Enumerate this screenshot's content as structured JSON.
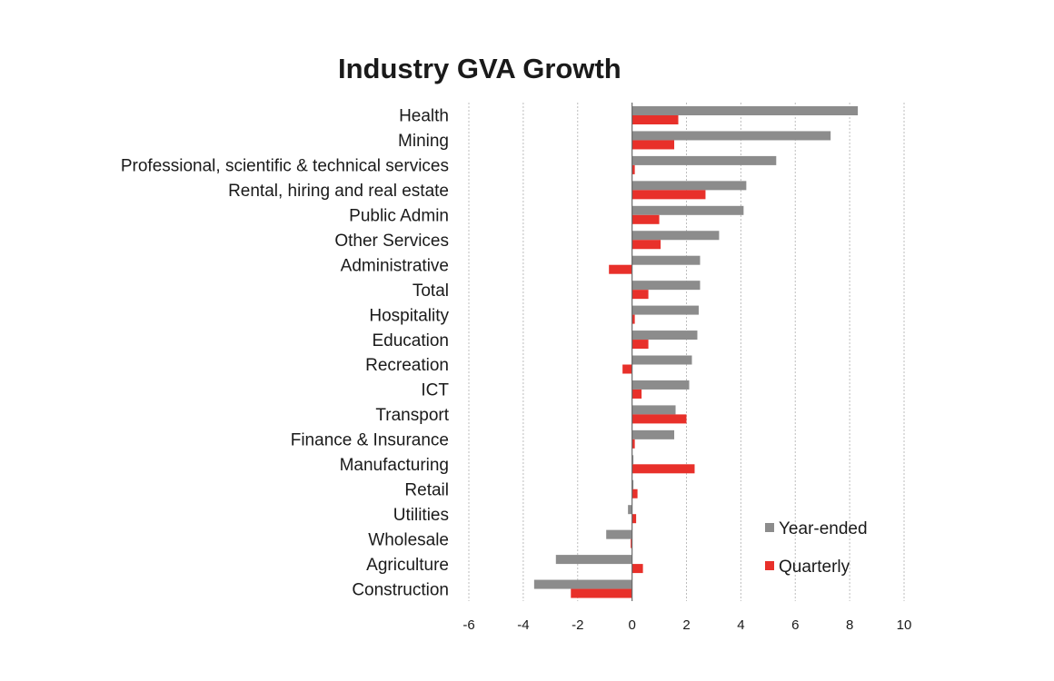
{
  "chart_data": {
    "type": "bar",
    "orientation": "horizontal",
    "title": "Industry GVA Growth",
    "xlabel": "",
    "ylabel": "",
    "xlim": [
      -6,
      10
    ],
    "xticks": [
      -6,
      -4,
      -2,
      0,
      2,
      4,
      6,
      8,
      10
    ],
    "grid": "vertical dashed",
    "legend_position": "bottom-right",
    "categories": [
      "Health",
      "Mining",
      "Professional, scientific & technical services",
      "Rental, hiring and real estate",
      "Public Admin",
      "Other Services",
      "Administrative",
      "Total",
      "Hospitality",
      "Education",
      "Recreation",
      "ICT",
      "Transport",
      "Finance & Insurance",
      "Manufacturing",
      "Retail",
      "Utilities",
      "Wholesale",
      "Agriculture",
      "Construction"
    ],
    "series": [
      {
        "name": "Year-ended",
        "color": "#8c8c8c",
        "values": [
          8.3,
          7.3,
          5.3,
          4.2,
          4.1,
          3.2,
          2.5,
          2.5,
          2.45,
          2.4,
          2.2,
          2.1,
          1.6,
          1.55,
          0.05,
          0.05,
          -0.15,
          -0.95,
          -2.8,
          -3.6
        ]
      },
      {
        "name": "Quarterly",
        "color": "#e8302a",
        "values": [
          1.7,
          1.55,
          0.1,
          2.7,
          1.0,
          1.05,
          -0.85,
          0.6,
          0.1,
          0.6,
          -0.35,
          0.35,
          2.0,
          0.1,
          2.3,
          0.2,
          0.15,
          -0.05,
          0.4,
          -2.25
        ]
      }
    ]
  }
}
